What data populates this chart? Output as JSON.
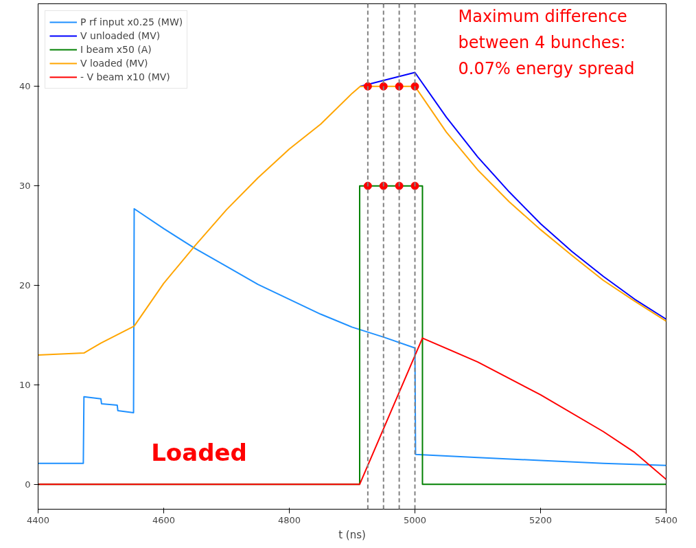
{
  "chart_data": {
    "type": "line",
    "xlabel": "t (ns)",
    "xlim": [
      4400,
      5400
    ],
    "ylim": [
      -2.5,
      48.3
    ],
    "xticks": [
      4400,
      4600,
      4800,
      5000,
      5200,
      5400
    ],
    "yticks": [
      0,
      10,
      20,
      30,
      40
    ],
    "grid": false,
    "legend": "top left",
    "line_style": "solid",
    "series": [
      {
        "name": "P rf input x0.25 (MW)",
        "color": "#1e90ff",
        "x": [
          4400,
          4472,
          4473,
          4500,
          4501,
          4526,
          4527,
          4552,
          4553,
          4600,
          4650,
          4700,
          4750,
          4800,
          4850,
          4900,
          4950,
          5000,
          5001,
          5100,
          5200,
          5300,
          5400
        ],
        "values": [
          2.1,
          2.1,
          8.8,
          8.6,
          8.1,
          7.95,
          7.4,
          7.2,
          27.7,
          25.7,
          23.7,
          21.9,
          20.1,
          18.6,
          17.1,
          15.8,
          14.8,
          13.7,
          3.0,
          2.7,
          2.4,
          2.1,
          1.9
        ]
      },
      {
        "name": "V unloaded (MV)",
        "color": "#0000ff",
        "x": [
          4913,
          5000,
          5050,
          5100,
          5150,
          5200,
          5250,
          5300,
          5350,
          5400
        ],
        "values": [
          40.0,
          41.4,
          36.9,
          32.9,
          29.4,
          26.2,
          23.4,
          20.9,
          18.6,
          16.6
        ]
      },
      {
        "name": "I beam x50 (A)",
        "color": "#008000",
        "x": [
          4400,
          4912,
          4912,
          5012,
          5012,
          5400
        ],
        "values": [
          0,
          0,
          30,
          30,
          0,
          0
        ]
      },
      {
        "name": "V loaded (MV)",
        "color": "#ffa500",
        "x": [
          4400,
          4473,
          4500,
          4553,
          4600,
          4650,
          4700,
          4750,
          4800,
          4850,
          4900,
          4913,
          5000,
          5012,
          5050,
          5100,
          5150,
          5200,
          5250,
          5300,
          5350,
          5400
        ],
        "values": [
          13.0,
          13.2,
          14.2,
          15.9,
          20.2,
          24.0,
          27.6,
          30.8,
          33.7,
          36.2,
          39.3,
          40.0,
          40.0,
          38.9,
          35.4,
          31.6,
          28.4,
          25.6,
          23.0,
          20.5,
          18.4,
          16.4
        ]
      },
      {
        "name": "- V beam x10 (MV)",
        "color": "#ff0000",
        "x": [
          4400,
          4912,
          5012,
          5100,
          5200,
          5300,
          5350,
          5400
        ],
        "values": [
          0,
          0,
          14.7,
          12.3,
          9.0,
          5.3,
          3.2,
          0.5
        ]
      },
      {
        "type": "scatter",
        "marker": "circle",
        "color": "#ff0000",
        "x": [
          4925,
          4950,
          4975,
          5000,
          4925,
          4950,
          4975,
          5000
        ],
        "values": [
          40,
          40,
          40,
          40,
          30,
          30,
          30,
          30
        ]
      }
    ],
    "ref_lines": [
      {
        "axis": "x",
        "value": 4925,
        "color": "#808080",
        "line_style": "dashed"
      },
      {
        "axis": "x",
        "value": 4950,
        "color": "#808080",
        "line_style": "dashed"
      },
      {
        "axis": "x",
        "value": 4975,
        "color": "#808080",
        "line_style": "dashed"
      },
      {
        "axis": "x",
        "value": 5000,
        "color": "#808080",
        "line_style": "dashed"
      }
    ],
    "annotations": [
      "Maximum difference\nbetween 4 bunches:\n0.07% energy spread",
      "Loaded"
    ]
  }
}
